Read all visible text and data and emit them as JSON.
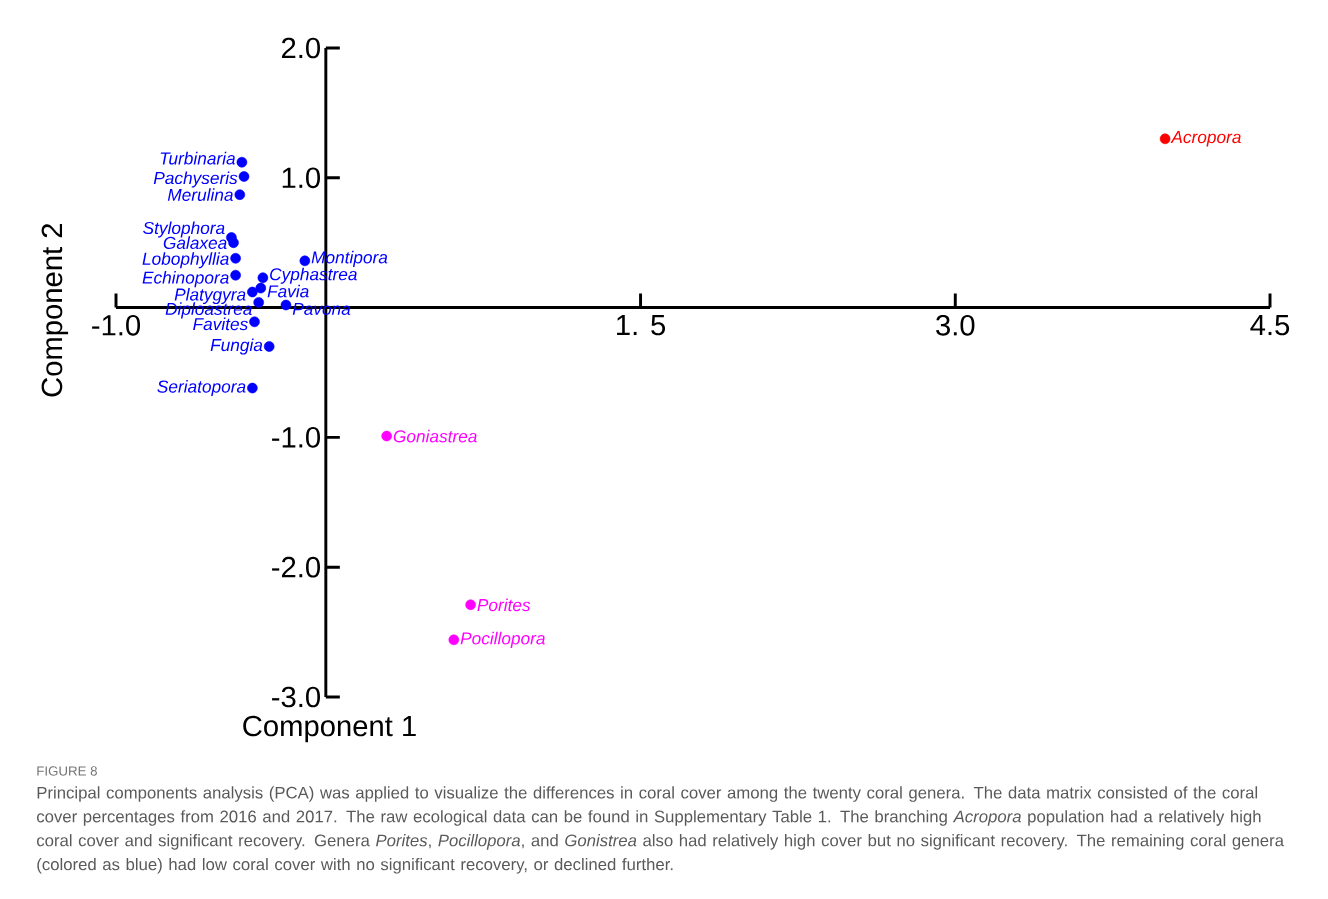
{
  "chart_data": {
    "type": "scatter",
    "title": "FIGURE 8",
    "xlabel": "Component 1",
    "ylabel": "Component 2",
    "xlim": [
      -1.0,
      4.5
    ],
    "ylim": [
      -3.0,
      2.0
    ],
    "xticks": [
      {
        "value": -1.0,
        "label": "-1.0"
      },
      {
        "value": 1.5,
        "label": "1. 5"
      },
      {
        "value": 3.0,
        "label": "3.0"
      },
      {
        "value": 4.5,
        "label": "4.5"
      }
    ],
    "yticks": [
      {
        "value": -3.0,
        "label": "-3.0"
      },
      {
        "value": -2.0,
        "label": "-2.0"
      },
      {
        "value": -1.0,
        "label": "-1.0"
      },
      {
        "value": 1.0,
        "label": "1.0"
      },
      {
        "value": 2.0,
        "label": "2.0"
      }
    ],
    "grid": false,
    "marker": "circle",
    "series": [
      {
        "color": "#0000ff",
        "x": [
          -0.4,
          -0.39,
          -0.41,
          -0.45,
          -0.44,
          -0.43,
          -0.43,
          -0.35,
          -0.32,
          -0.34,
          -0.27,
          -0.35,
          -0.1,
          -0.3,
          -0.31,
          -0.19
        ],
        "values": [
          1.12,
          1.01,
          0.87,
          0.54,
          0.5,
          0.38,
          0.25,
          0.12,
          0.04,
          -0.11,
          -0.3,
          -0.62,
          0.36,
          0.23,
          0.15,
          0.02
        ],
        "value_labels": [
          "Turbinaria",
          "Pachyseris",
          "Merulina",
          "Stylophora",
          "Galaxea",
          "Lobophyllia",
          "Echinopora",
          "Platygyra",
          "Diploastrea",
          "Favites",
          "Fungia",
          "Seriatopora",
          "Montipora",
          "Cyphastrea",
          "Favia",
          "Pavona"
        ]
      },
      {
        "color": "#ff00ff",
        "x": [
          0.29,
          0.69,
          0.61
        ],
        "values": [
          -0.99,
          -2.29,
          -2.56
        ],
        "value_labels": [
          "Goniastrea",
          "Porites",
          "Pocillopora"
        ]
      },
      {
        "color": "#ff0000",
        "x": [
          4.0
        ],
        "values": [
          1.3
        ],
        "value_labels": [
          "Acropora"
        ]
      }
    ],
    "annotations": [
      "Principal components analysis (PCA) was applied to visualize the differences in coral cover among the twenty coral genera. The data matrix consisted of the coral cover percentages from 2016 and 2017. The raw ecological data can be found in Supplementary Table 1. The branching *Acropora* population had a relatively high coral cover and significant recovery. Genera *Porites*, *Pocillopora*, and *Gonistrea* also had relatively high cover but no significant recovery. The remaining coral genera (colored as blue) had low coral cover with no significant recovery, or declined further."
    ]
  }
}
